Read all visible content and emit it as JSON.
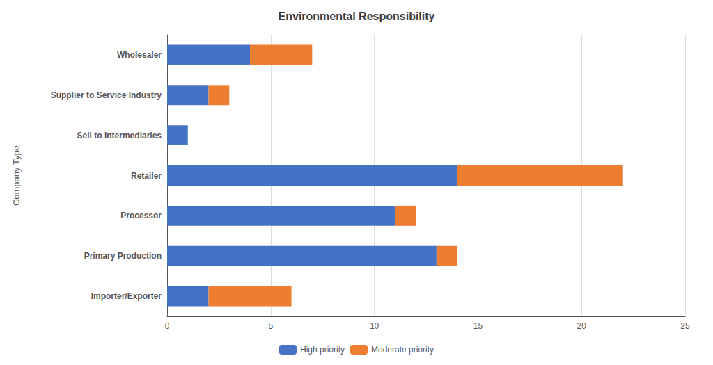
{
  "chart_data": {
    "type": "bar",
    "title": "Environmental Responsibility",
    "ylabel": "Company Type",
    "categories": [
      "Wholesaler",
      "Supplier to Service Industry",
      "Sell to Intermediaries",
      "Retailer",
      "Processor",
      "Primary Production",
      "Importer/Exporter"
    ],
    "series": [
      {
        "name": "High priority",
        "color": "#4472C4",
        "values": [
          4,
          2,
          1,
          14,
          11,
          13,
          2
        ]
      },
      {
        "name": "Moderate priority",
        "color": "#ED7D31",
        "values": [
          3,
          1,
          0,
          8,
          1,
          1,
          4
        ]
      }
    ],
    "orientation": "horizontal",
    "stacked": true,
    "xlim": [
      0,
      25
    ],
    "xticks": [
      0,
      5,
      10,
      15,
      20,
      25
    ],
    "grid": true,
    "legend": "bottom"
  }
}
